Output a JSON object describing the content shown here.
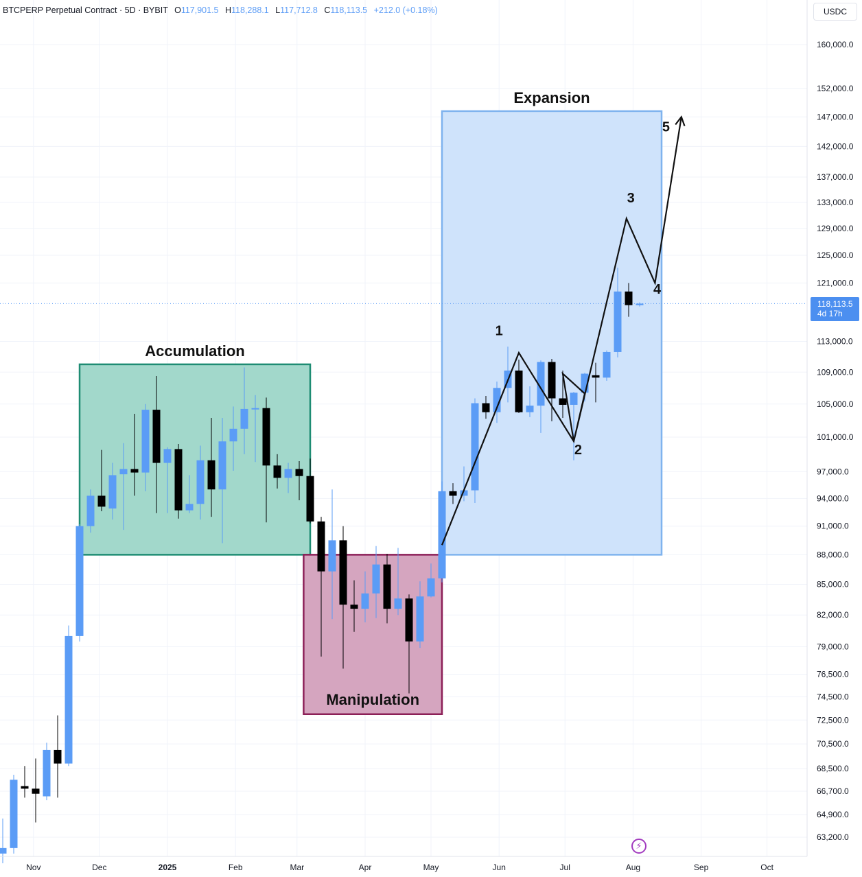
{
  "legend": {
    "symbol": "BTCPERP Perpetual Contract · 5D · BYBIT",
    "o_label": "O",
    "o_value": "117,901.5",
    "h_label": "H",
    "h_value": "118,288.1",
    "l_label": "L",
    "l_value": "117,712.8",
    "c_label": "C",
    "c_value": "118,113.5",
    "change": "+212.0 (+0.18%)"
  },
  "currency": "USDC",
  "price_badge": {
    "price": "118,113.5",
    "countdown": "4d 17h"
  },
  "colors": {
    "up": "#5b9cf6",
    "down": "#000000",
    "accumulation_fill": "#9dd6c8",
    "accumulation_border": "#1e8c73",
    "manipulation_fill": "#d3a0bc",
    "manipulation_border": "#8c1f57",
    "expansion_fill": "#cce1fb",
    "expansion_border": "#7fb3ee",
    "brand_icon": "#a23bbf"
  },
  "logo_icon": "lightning-icon",
  "chart_data": {
    "type": "candlestick",
    "interval": "5D",
    "scale": "log",
    "x_ticks": [
      "Nov",
      "Dec",
      "2025",
      "Feb",
      "Mar",
      "Apr",
      "May",
      "Jun",
      "Jul",
      "Aug",
      "Sep",
      "Oct"
    ],
    "y_ticks": [
      "160,000.0",
      "152,000.0",
      "147,000.0",
      "142,000.0",
      "137,000.0",
      "133,000.0",
      "129,000.0",
      "125,000.0",
      "121,000.0",
      "113,000.0",
      "109,000.0",
      "105,000.0",
      "101,000.0",
      "97,000.0",
      "94,000.0",
      "91,000.0",
      "88,000.0",
      "85,000.0",
      "82,000.0",
      "79,000.0",
      "76,500.0",
      "74,500.0",
      "72,500.0",
      "70,500.0",
      "68,500.0",
      "66,700.0",
      "64,900.0",
      "63,200.0"
    ],
    "ylim": [
      62000,
      166000
    ],
    "candles": [
      {
        "t": "2024-10-18",
        "o": 62000,
        "h": 64600,
        "l": 61300,
        "c": 62400
      },
      {
        "t": "2024-10-23",
        "o": 62400,
        "h": 68000,
        "l": 62000,
        "c": 67600
      },
      {
        "t": "2024-10-28",
        "o": 67100,
        "h": 68700,
        "l": 66200,
        "c": 66900
      },
      {
        "t": "2024-11-02",
        "o": 66900,
        "h": 69300,
        "l": 64300,
        "c": 66500
      },
      {
        "t": "2024-11-07",
        "o": 66300,
        "h": 70600,
        "l": 66000,
        "c": 70000
      },
      {
        "t": "2024-11-12",
        "o": 70000,
        "h": 72900,
        "l": 66200,
        "c": 68900
      },
      {
        "t": "2024-11-17",
        "o": 68900,
        "h": 81000,
        "l": 68700,
        "c": 80000
      },
      {
        "t": "2024-11-22",
        "o": 80000,
        "h": 91200,
        "l": 79500,
        "c": 91000
      },
      {
        "t": "2024-11-27",
        "o": 91000,
        "h": 95000,
        "l": 90300,
        "c": 94300
      },
      {
        "t": "2024-12-02",
        "o": 94300,
        "h": 99500,
        "l": 92600,
        "c": 93100
      },
      {
        "t": "2024-12-07",
        "o": 92900,
        "h": 98000,
        "l": 91700,
        "c": 96600
      },
      {
        "t": "2024-12-12",
        "o": 96700,
        "h": 100300,
        "l": 90600,
        "c": 97300
      },
      {
        "t": "2024-12-17",
        "o": 97300,
        "h": 103800,
        "l": 94300,
        "c": 96900
      },
      {
        "t": "2024-12-22",
        "o": 96900,
        "h": 105000,
        "l": 94800,
        "c": 104300
      },
      {
        "t": "2024-12-27",
        "o": 104300,
        "h": 108500,
        "l": 92400,
        "c": 98000
      },
      {
        "t": "2025-01-01",
        "o": 98000,
        "h": 99800,
        "l": 92400,
        "c": 99600
      },
      {
        "t": "2025-01-06",
        "o": 99600,
        "h": 100200,
        "l": 91800,
        "c": 92700
      },
      {
        "t": "2025-01-11",
        "o": 92700,
        "h": 96600,
        "l": 92400,
        "c": 93400
      },
      {
        "t": "2025-01-16",
        "o": 93400,
        "h": 100000,
        "l": 91700,
        "c": 98300
      },
      {
        "t": "2025-01-21",
        "o": 98300,
        "h": 103300,
        "l": 92000,
        "c": 95000
      },
      {
        "t": "2025-01-26",
        "o": 95000,
        "h": 103300,
        "l": 89200,
        "c": 100500
      },
      {
        "t": "2025-01-31",
        "o": 100500,
        "h": 104700,
        "l": 97100,
        "c": 102000
      },
      {
        "t": "2025-02-05",
        "o": 102000,
        "h": 109600,
        "l": 99000,
        "c": 104400
      },
      {
        "t": "2025-02-10",
        "o": 104400,
        "h": 106100,
        "l": 98100,
        "c": 104500
      },
      {
        "t": "2025-02-15",
        "o": 104500,
        "h": 105800,
        "l": 91400,
        "c": 97700
      },
      {
        "t": "2025-02-20",
        "o": 97700,
        "h": 99000,
        "l": 95100,
        "c": 96300
      },
      {
        "t": "2025-02-25",
        "o": 96300,
        "h": 98000,
        "l": 94600,
        "c": 97300
      },
      {
        "t": "2025-03-02",
        "o": 97300,
        "h": 98200,
        "l": 93800,
        "c": 96500
      },
      {
        "t": "2025-03-07",
        "o": 96500,
        "h": 98500,
        "l": 91300,
        "c": 91500
      },
      {
        "t": "2025-03-12",
        "o": 91500,
        "h": 92000,
        "l": 78100,
        "c": 86300
      },
      {
        "t": "2025-03-17",
        "o": 86300,
        "h": 95000,
        "l": 81600,
        "c": 89500
      },
      {
        "t": "2025-03-22",
        "o": 89500,
        "h": 91000,
        "l": 77000,
        "c": 83000
      },
      {
        "t": "2025-03-27",
        "o": 83000,
        "h": 85400,
        "l": 80400,
        "c": 82600
      },
      {
        "t": "2025-04-01",
        "o": 82600,
        "h": 86300,
        "l": 81300,
        "c": 84100
      },
      {
        "t": "2025-04-06",
        "o": 84100,
        "h": 88900,
        "l": 81700,
        "c": 87000
      },
      {
        "t": "2025-04-11",
        "o": 87000,
        "h": 88100,
        "l": 81200,
        "c": 82600
      },
      {
        "t": "2025-04-16",
        "o": 82600,
        "h": 88700,
        "l": 82000,
        "c": 83600
      },
      {
        "t": "2025-04-21",
        "o": 83600,
        "h": 84000,
        "l": 74800,
        "c": 79500
      },
      {
        "t": "2025-04-26",
        "o": 79500,
        "h": 85300,
        "l": 78900,
        "c": 83800
      },
      {
        "t": "2025-05-01",
        "o": 83800,
        "h": 87100,
        "l": 83700,
        "c": 85600
      },
      {
        "t": "2025-05-06",
        "o": 85600,
        "h": 95900,
        "l": 85200,
        "c": 94800
      },
      {
        "t": "2025-05-11",
        "o": 94800,
        "h": 95700,
        "l": 93400,
        "c": 94300
      },
      {
        "t": "2025-05-16",
        "o": 94300,
        "h": 97600,
        "l": 93700,
        "c": 94900
      },
      {
        "t": "2025-05-21",
        "o": 94900,
        "h": 105700,
        "l": 93500,
        "c": 105100
      },
      {
        "t": "2025-05-26",
        "o": 105100,
        "h": 106000,
        "l": 103200,
        "c": 104000
      },
      {
        "t": "2025-05-31",
        "o": 104000,
        "h": 107800,
        "l": 102700,
        "c": 107000
      },
      {
        "t": "2025-06-05",
        "o": 107000,
        "h": 112300,
        "l": 105200,
        "c": 109200
      },
      {
        "t": "2025-06-10",
        "o": 109200,
        "h": 110600,
        "l": 103900,
        "c": 104000
      },
      {
        "t": "2025-06-15",
        "o": 104000,
        "h": 107200,
        "l": 103400,
        "c": 104800
      },
      {
        "t": "2025-06-20",
        "o": 104800,
        "h": 110500,
        "l": 101500,
        "c": 110300
      },
      {
        "t": "2025-06-25",
        "o": 110300,
        "h": 110700,
        "l": 102900,
        "c": 105700
      },
      {
        "t": "2025-06-30",
        "o": 105700,
        "h": 109200,
        "l": 103300,
        "c": 104900
      },
      {
        "t": "2025-07-05",
        "o": 104900,
        "h": 106500,
        "l": 98300,
        "c": 106400
      },
      {
        "t": "2025-07-10",
        "o": 106400,
        "h": 108900,
        "l": 105300,
        "c": 108800
      },
      {
        "t": "2025-07-15",
        "o": 108600,
        "h": 110200,
        "l": 105200,
        "c": 108300
      },
      {
        "t": "2025-07-20",
        "o": 108300,
        "h": 111800,
        "l": 107900,
        "c": 111600
      },
      {
        "t": "2025-07-25",
        "o": 111600,
        "h": 123200,
        "l": 110900,
        "c": 119800
      },
      {
        "t": "2025-07-30",
        "o": 119800,
        "h": 121000,
        "l": 116300,
        "c": 117900
      },
      {
        "t": "2025-08-04",
        "o": 117901.5,
        "h": 118288.1,
        "l": 117712.8,
        "c": 118113.5
      }
    ],
    "zones": [
      {
        "label": "Accumulation",
        "t_start": "2024-11-22",
        "t_end": "2025-03-07",
        "y_low": 88000,
        "y_high": 110000
      },
      {
        "label": "Manipulation",
        "t_start": "2025-03-04",
        "t_end": "2025-05-06",
        "y_low": 73000,
        "y_high": 88000
      },
      {
        "label": "Expansion",
        "t_start": "2025-05-06",
        "t_end": "2025-08-14",
        "y_low": 88000,
        "y_high": 148000
      }
    ],
    "wave_path": [
      {
        "t": "2025-05-06",
        "p": 89000
      },
      {
        "t": "2025-06-10",
        "p": 111500
      },
      {
        "t": "2025-07-05",
        "p": 100500
      },
      {
        "t": "2025-07-10",
        "p": 106300
      },
      {
        "t": "2025-06-30",
        "p": 108800
      },
      {
        "t": "2025-07-05",
        "p": 100500
      },
      {
        "t": "2025-07-29",
        "p": 130500
      },
      {
        "t": "2025-08-11",
        "p": 121000
      },
      {
        "t": "2025-08-23",
        "p": 147000
      }
    ],
    "wave_labels": [
      {
        "text": "1",
        "t": "2025-06-01",
        "p": 113800
      },
      {
        "text": "2",
        "t": "2025-07-07",
        "p": 99000
      },
      {
        "text": "3",
        "t": "2025-07-31",
        "p": 133000
      },
      {
        "text": "4",
        "t": "2025-08-12",
        "p": 119500
      },
      {
        "text": "5",
        "t": "2025-08-16",
        "p": 144500
      }
    ],
    "last_price": 118113.5
  }
}
